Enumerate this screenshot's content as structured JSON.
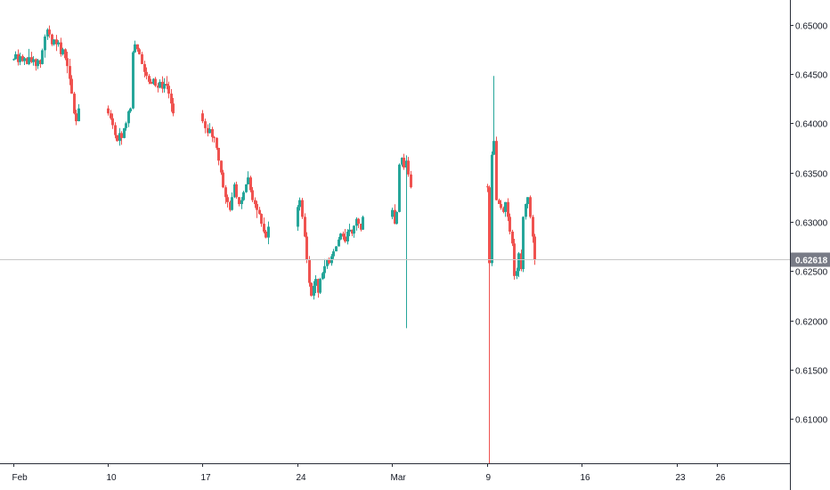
{
  "chart_data": {
    "type": "candlestick",
    "title": "",
    "colors": {
      "up": "#26a69a",
      "down": "#ef5350",
      "grid_line": "#c8c8c8",
      "axis": "#2a2e39",
      "price_tag_bg": "#787b86",
      "background": "#ffffff"
    },
    "x_axis": {
      "ticks": [
        {
          "label": "Feb",
          "date": "2020-02-03"
        },
        {
          "label": "10",
          "date": "2020-02-10"
        },
        {
          "label": "17",
          "date": "2020-02-17"
        },
        {
          "label": "24",
          "date": "2020-02-24"
        },
        {
          "label": "Mar",
          "date": "2020-03-02"
        },
        {
          "label": "9",
          "date": "2020-03-09"
        },
        {
          "label": "16",
          "date": "2020-03-16"
        },
        {
          "label": "23",
          "date": "2020-03-23"
        },
        {
          "label": "26",
          "date": "2020-03-26"
        }
      ]
    },
    "y_axis": {
      "range": [
        0.6055,
        0.6525
      ],
      "ticks": [
        {
          "label": "0.65000",
          "value": 0.65
        },
        {
          "label": "0.64500",
          "value": 0.645
        },
        {
          "label": "0.64000",
          "value": 0.64
        },
        {
          "label": "0.63500",
          "value": 0.635
        },
        {
          "label": "0.63000",
          "value": 0.63
        },
        {
          "label": "0.62500",
          "value": 0.625
        },
        {
          "label": "0.62000",
          "value": 0.62
        },
        {
          "label": "0.61500",
          "value": 0.615
        },
        {
          "label": "0.61000",
          "value": 0.61
        }
      ]
    },
    "current_price": {
      "label": "0.62618",
      "value": 0.62618
    },
    "grid": false,
    "legend": "none",
    "bar_interval": "4 hours",
    "segments": [
      {
        "start": "2020-02-03",
        "prices": [
          0.6465,
          0.647,
          0.6462,
          0.6468,
          0.6463,
          0.6466,
          0.646,
          0.6467,
          0.6462,
          0.6465,
          0.6458,
          0.6464,
          0.646,
          0.6474,
          0.6488,
          0.6495,
          0.649,
          0.648,
          0.6485,
          0.648,
          0.6482,
          0.647,
          0.6475,
          0.6466,
          0.6458,
          0.6445,
          0.643,
          0.641,
          0.6402,
          0.6415,
          0.641,
          0.6405,
          0.6398,
          0.6388,
          0.6382,
          0.639,
          0.6385,
          0.6395,
          0.64,
          0.6412,
          0.6415,
          0.6472,
          0.648,
          0.6475,
          0.647,
          0.646,
          0.6452,
          0.6448,
          0.6442,
          0.644,
          0.6445,
          0.6438,
          0.6436,
          0.6442,
          0.6435,
          0.644,
          0.6438,
          0.643,
          0.642,
          0.641,
          0.6402,
          0.6395,
          0.639,
          0.6394,
          0.6386,
          0.6385,
          0.6375,
          0.6362,
          0.635,
          0.6335,
          0.6325,
          0.632,
          0.6312,
          0.6325,
          0.6338,
          0.6325,
          0.6318,
          0.6322,
          0.633,
          0.6338,
          0.6345,
          0.6332,
          0.6322,
          0.6318,
          0.6312,
          0.6308,
          0.6298,
          0.629,
          0.6284,
          0.6295,
          0.6315,
          0.6322,
          0.6305,
          0.6285,
          0.6262,
          0.6238,
          0.6225,
          0.6235,
          0.6242,
          0.6228,
          0.6242,
          0.6248,
          0.6255,
          0.6262,
          0.6258,
          0.6265,
          0.627,
          0.6275,
          0.6282,
          0.6288,
          0.6285,
          0.628,
          0.629,
          0.6292,
          0.6288,
          0.6296,
          0.6303,
          0.6298,
          0.6292,
          0.6305,
          0.6312,
          0.6298,
          0.631,
          0.6358,
          0.6365,
          0.6355,
          0.6362,
          0.6348,
          0.6335
        ]
      },
      {
        "start": "2020-03-09",
        "prices": [
          0.6335,
          0.6258,
          0.6368,
          0.6382,
          0.6322,
          0.6318,
          0.6314,
          0.631,
          0.632,
          0.6305,
          0.629,
          0.6278,
          0.6245,
          0.625,
          0.6268,
          0.6252,
          0.6305,
          0.6318,
          0.6325,
          0.6305,
          0.6285,
          0.6262
        ]
      }
    ],
    "extreme_wicks": [
      {
        "date": "2020-03-09",
        "bar": 1,
        "low": 0.6055
      },
      {
        "date": "2020-03-09",
        "bar": 3,
        "high": 0.6448
      },
      {
        "date": "2020-03-03",
        "bar": 0,
        "low": 0.6192
      }
    ]
  }
}
